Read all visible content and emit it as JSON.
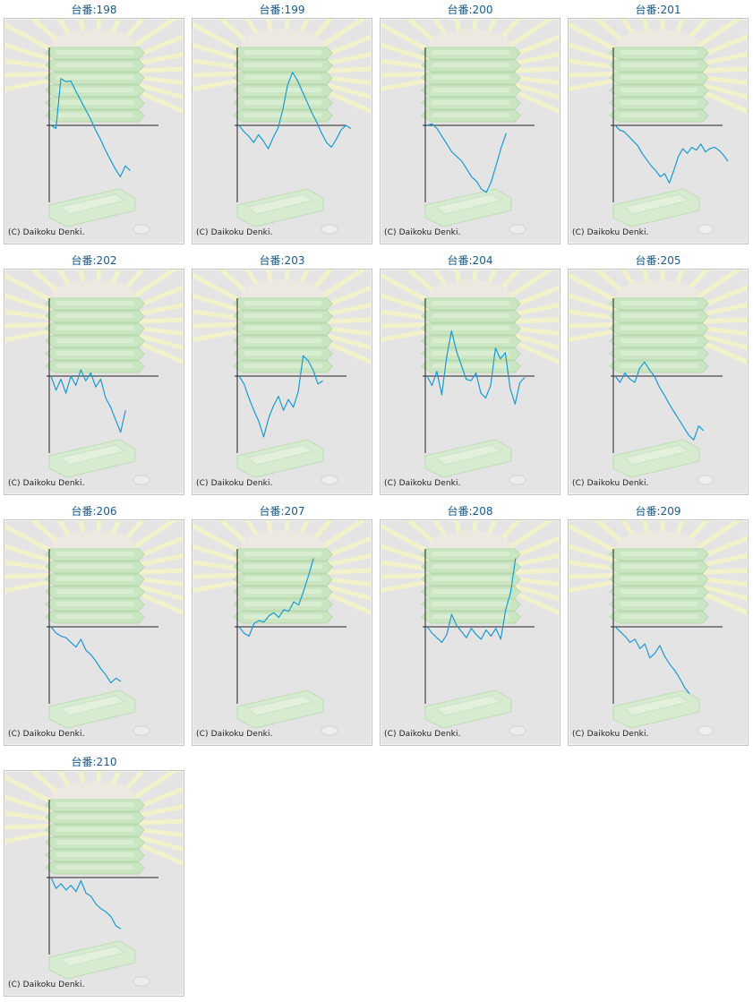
{
  "title_prefix": "台番:",
  "copyright": "(C) Daikoku Denki.",
  "colors": {
    "line": "#1a9ad0",
    "axis": "#222222",
    "panel_bg": "#e4e4e4",
    "title": "#1a5a8a",
    "art_green": "#c8e6bf",
    "art_rays": "#f4f4c8"
  },
  "chart_data": [
    {
      "type": "line",
      "machine": "198",
      "values": [
        0,
        -4,
        60,
        56,
        57,
        44,
        32,
        20,
        8,
        -6,
        -18,
        -32,
        -44,
        -56,
        -66,
        -52,
        -58
      ]
    },
    {
      "type": "line",
      "machine": "199",
      "values": [
        0,
        -8,
        -14,
        -22,
        -12,
        -20,
        -30,
        -16,
        -4,
        20,
        52,
        68,
        58,
        44,
        30,
        16,
        4,
        -10,
        -22,
        -28,
        -18,
        -6,
        0,
        -4
      ]
    },
    {
      "type": "line",
      "machine": "200",
      "values": [
        0,
        2,
        -4,
        -14,
        -24,
        -34,
        -40,
        -46,
        -56,
        -66,
        -72,
        -82,
        -86,
        -72,
        -50,
        -28,
        -10
      ]
    },
    {
      "type": "line",
      "machine": "201",
      "values": [
        0,
        -6,
        -8,
        -14,
        -20,
        -26,
        -36,
        -44,
        -52,
        -58,
        -66,
        -62,
        -74,
        -58,
        -40,
        -30,
        -36,
        -28,
        -32,
        -24,
        -34,
        -30,
        -28,
        -32,
        -38,
        -46
      ]
    },
    {
      "type": "line",
      "machine": "202",
      "values": [
        0,
        -18,
        -4,
        -22,
        0,
        -12,
        8,
        -6,
        4,
        -14,
        -4,
        -28,
        -40,
        -56,
        -72,
        -44
      ]
    },
    {
      "type": "line",
      "machine": "203",
      "values": [
        0,
        -10,
        -28,
        -44,
        -58,
        -78,
        -54,
        -38,
        -26,
        -44,
        -30,
        -40,
        -20,
        26,
        20,
        8,
        -10,
        -6
      ]
    },
    {
      "type": "line",
      "machine": "204",
      "values": [
        0,
        -12,
        6,
        -24,
        24,
        58,
        32,
        14,
        -4,
        -6,
        4,
        -22,
        -28,
        -12,
        36,
        22,
        30,
        -16,
        -36,
        -8,
        -2
      ]
    },
    {
      "type": "line",
      "machine": "205",
      "values": [
        0,
        -8,
        4,
        -4,
        -8,
        10,
        18,
        8,
        0,
        -14,
        -24,
        -36,
        -46,
        -56,
        -66,
        -76,
        -82,
        -64,
        -70
      ]
    },
    {
      "type": "line",
      "machine": "206",
      "values": [
        0,
        -8,
        -12,
        -14,
        -20,
        -26,
        -16,
        -30,
        -36,
        -44,
        -54,
        -62,
        -72,
        -66,
        -70
      ]
    },
    {
      "type": "line",
      "machine": "207",
      "values": [
        0,
        -8,
        -12,
        4,
        8,
        6,
        14,
        18,
        12,
        22,
        20,
        32,
        28,
        46,
        66,
        88
      ]
    },
    {
      "type": "line",
      "machine": "208",
      "values": [
        0,
        -8,
        -14,
        -20,
        -10,
        16,
        2,
        -6,
        -14,
        -2,
        -10,
        -16,
        -4,
        -12,
        -2,
        -16,
        22,
        44,
        88
      ]
    },
    {
      "type": "line",
      "machine": "209",
      "values": [
        0,
        -6,
        -12,
        -20,
        -16,
        -28,
        -22,
        -40,
        -34,
        -24,
        -38,
        -48,
        -56,
        -66,
        -78,
        -86
      ]
    },
    {
      "type": "line",
      "machine": "210",
      "values": [
        0,
        -14,
        -8,
        -16,
        -10,
        -18,
        -4,
        -20,
        -24,
        -34,
        -40,
        -44,
        -50,
        -62,
        -66
      ]
    }
  ]
}
